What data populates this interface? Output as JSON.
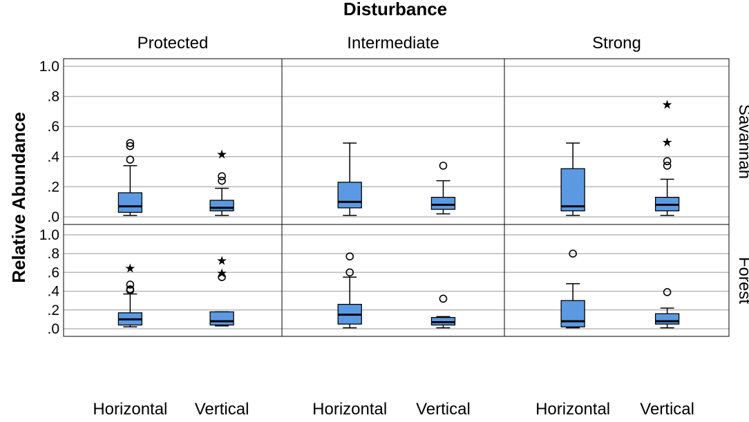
{
  "chart_data": {
    "type": "boxplot",
    "title": "Disturbance",
    "ylabel": "Relative Abundance",
    "ylim": [
      0,
      1.0
    ],
    "yticks": [
      {
        "value": 0.0,
        "label": ".0"
      },
      {
        "value": 0.2,
        "label": ".2"
      },
      {
        "value": 0.4,
        "label": ".4"
      },
      {
        "value": 0.6,
        "label": ".6"
      },
      {
        "value": 0.8,
        "label": ".8"
      },
      {
        "value": 1.0,
        "label": "1.0"
      }
    ],
    "columns": [
      "Protected",
      "Intermediate",
      "Strong"
    ],
    "rows": [
      "Savannah",
      "Forest"
    ],
    "categories": [
      "Horizontal",
      "Vertical"
    ],
    "panels": [
      {
        "row": "Savannah",
        "column": "Protected",
        "boxes": [
          {
            "category": "Horizontal",
            "min": 0.01,
            "q1": 0.03,
            "median": 0.07,
            "q3": 0.16,
            "max": 0.34,
            "outliers": [
              0.38,
              0.47,
              0.49
            ],
            "extremes": []
          },
          {
            "category": "Vertical",
            "min": 0.01,
            "q1": 0.04,
            "median": 0.06,
            "q3": 0.11,
            "max": 0.19,
            "outliers": [
              0.24,
              0.27
            ],
            "extremes": [
              0.42
            ]
          }
        ]
      },
      {
        "row": "Savannah",
        "column": "Intermediate",
        "boxes": [
          {
            "category": "Horizontal",
            "min": 0.01,
            "q1": 0.06,
            "median": 0.1,
            "q3": 0.23,
            "max": 0.49,
            "outliers": [],
            "extremes": []
          },
          {
            "category": "Vertical",
            "min": 0.02,
            "q1": 0.05,
            "median": 0.08,
            "q3": 0.13,
            "max": 0.24,
            "outliers": [
              0.34
            ],
            "extremes": []
          }
        ]
      },
      {
        "row": "Savannah",
        "column": "Strong",
        "boxes": [
          {
            "category": "Horizontal",
            "min": 0.01,
            "q1": 0.04,
            "median": 0.07,
            "q3": 0.32,
            "max": 0.49,
            "outliers": [],
            "extremes": []
          },
          {
            "category": "Vertical",
            "min": 0.01,
            "q1": 0.04,
            "median": 0.08,
            "q3": 0.13,
            "max": 0.25,
            "outliers": [
              0.34,
              0.37
            ],
            "extremes": [
              0.5,
              0.75
            ]
          }
        ]
      },
      {
        "row": "Forest",
        "column": "Protected",
        "boxes": [
          {
            "category": "Horizontal",
            "min": 0.02,
            "q1": 0.04,
            "median": 0.1,
            "q3": 0.17,
            "max": 0.37,
            "outliers": [
              0.41,
              0.42,
              0.47
            ],
            "extremes": [
              0.65
            ]
          },
          {
            "category": "Vertical",
            "min": 0.03,
            "q1": 0.04,
            "median": 0.08,
            "q3": 0.18,
            "max": 0.18,
            "outliers": [
              0.55
            ],
            "extremes": [
              0.6,
              0.73
            ]
          }
        ]
      },
      {
        "row": "Forest",
        "column": "Intermediate",
        "boxes": [
          {
            "category": "Horizontal",
            "min": 0.01,
            "q1": 0.05,
            "median": 0.15,
            "q3": 0.26,
            "max": 0.55,
            "outliers": [
              0.6,
              0.77
            ],
            "extremes": []
          },
          {
            "category": "Vertical",
            "min": 0.01,
            "q1": 0.04,
            "median": 0.07,
            "q3": 0.12,
            "max": 0.13,
            "outliers": [
              0.32
            ],
            "extremes": []
          }
        ]
      },
      {
        "row": "Forest",
        "column": "Strong",
        "boxes": [
          {
            "category": "Horizontal",
            "min": 0.01,
            "q1": 0.02,
            "median": 0.08,
            "q3": 0.3,
            "max": 0.48,
            "outliers": [
              0.8
            ],
            "extremes": []
          },
          {
            "category": "Vertical",
            "min": 0.01,
            "q1": 0.05,
            "median": 0.08,
            "q3": 0.16,
            "max": 0.22,
            "outliers": [
              0.39
            ],
            "extremes": []
          }
        ]
      }
    ]
  }
}
